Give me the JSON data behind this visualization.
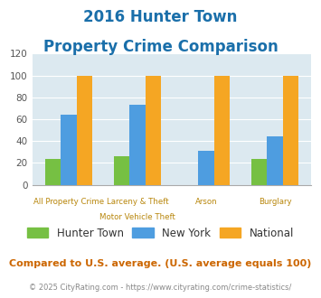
{
  "title_line1": "2016 Hunter Town",
  "title_line2": "Property Crime Comparison",
  "cat_labels": [
    [
      "All Property Crime",
      ""
    ],
    [
      "Larceny & Theft",
      "Motor Vehicle Theft"
    ],
    [
      "Arson",
      ""
    ],
    [
      "Burglary",
      ""
    ]
  ],
  "hunter_town": [
    24,
    26,
    0,
    24
  ],
  "new_york": [
    64,
    73,
    31,
    44
  ],
  "national": [
    100,
    100,
    100,
    100
  ],
  "colors": {
    "hunter_town": "#76c043",
    "new_york": "#4e9de0",
    "national": "#f5a623"
  },
  "ylim": [
    0,
    120
  ],
  "yticks": [
    0,
    20,
    40,
    60,
    80,
    100,
    120
  ],
  "background_color": "#dce9f0",
  "title_color": "#1a6faa",
  "legend_labels": [
    "Hunter Town",
    "New York",
    "National"
  ],
  "footnote1": "Compared to U.S. average. (U.S. average equals 100)",
  "footnote2": "© 2025 CityRating.com - https://www.cityrating.com/crime-statistics/",
  "footnote1_color": "#cc6600",
  "footnote2_color": "#888888",
  "xlabel_color": "#b8860b"
}
